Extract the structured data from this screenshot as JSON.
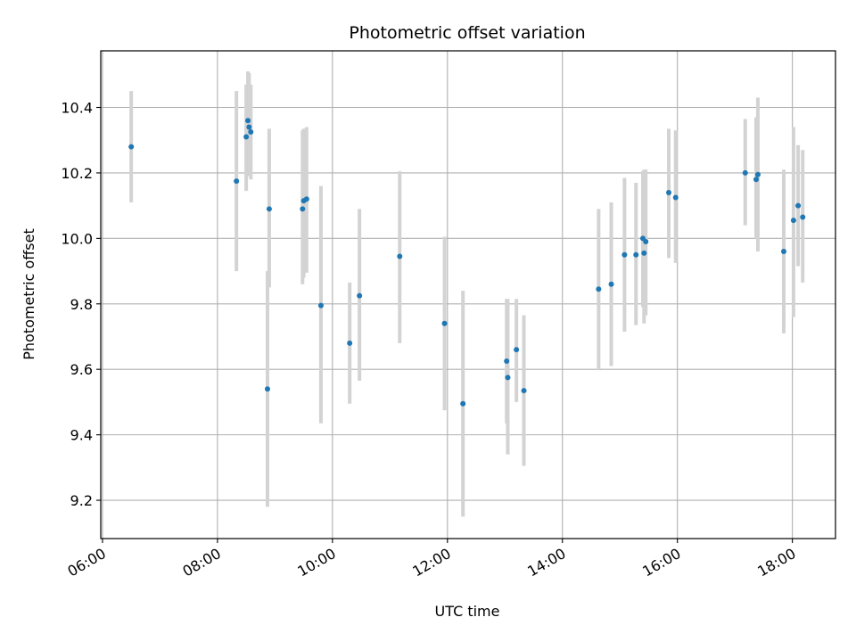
{
  "chart_data": {
    "type": "scatter",
    "title": "Photometric offset variation",
    "xlabel": "UTC time",
    "ylabel": "Photometric offset",
    "x_unit": "hours (UTC)",
    "xlim": [
      5.97,
      18.75
    ],
    "ylim": [
      9.083,
      10.573
    ],
    "x_ticks": [
      {
        "value": 6,
        "label": "06:00"
      },
      {
        "value": 8,
        "label": "08:00"
      },
      {
        "value": 10,
        "label": "10:00"
      },
      {
        "value": 12,
        "label": "12:00"
      },
      {
        "value": 14,
        "label": "14:00"
      },
      {
        "value": 16,
        "label": "16:00"
      },
      {
        "value": 18,
        "label": "18:00"
      }
    ],
    "y_ticks": [
      {
        "value": 9.2,
        "label": "9.2"
      },
      {
        "value": 9.4,
        "label": "9.4"
      },
      {
        "value": 9.6,
        "label": "9.6"
      },
      {
        "value": 9.8,
        "label": "9.8"
      },
      {
        "value": 10.0,
        "label": "10.0"
      },
      {
        "value": 10.2,
        "label": "10.2"
      },
      {
        "value": 10.4,
        "label": "10.4"
      }
    ],
    "grid": true,
    "colors": {
      "point": "#1f77b4",
      "errorbar": "#d3d3d3",
      "grid": "#b0b0b0",
      "axes": "#000000"
    },
    "points": [
      {
        "x": 6.5,
        "y": 10.28,
        "ylo": 10.11,
        "yhi": 10.45
      },
      {
        "x": 8.33,
        "y": 10.175,
        "ylo": 9.9,
        "yhi": 10.45
      },
      {
        "x": 8.5,
        "y": 10.31,
        "ylo": 10.145,
        "yhi": 10.47
      },
      {
        "x": 8.53,
        "y": 10.36,
        "ylo": 10.21,
        "yhi": 10.51
      },
      {
        "x": 8.55,
        "y": 10.34,
        "ylo": 10.19,
        "yhi": 10.505
      },
      {
        "x": 8.58,
        "y": 10.325,
        "ylo": 10.18,
        "yhi": 10.47
      },
      {
        "x": 8.87,
        "y": 9.54,
        "ylo": 9.18,
        "yhi": 9.9
      },
      {
        "x": 8.9,
        "y": 10.09,
        "ylo": 9.85,
        "yhi": 10.335
      },
      {
        "x": 9.48,
        "y": 10.09,
        "ylo": 9.86,
        "yhi": 10.33
      },
      {
        "x": 9.5,
        "y": 10.115,
        "ylo": 9.88,
        "yhi": 10.335
      },
      {
        "x": 9.55,
        "y": 10.12,
        "ylo": 9.895,
        "yhi": 10.34
      },
      {
        "x": 9.8,
        "y": 9.795,
        "ylo": 9.435,
        "yhi": 10.16
      },
      {
        "x": 10.3,
        "y": 9.68,
        "ylo": 9.495,
        "yhi": 9.865
      },
      {
        "x": 10.47,
        "y": 9.825,
        "ylo": 9.565,
        "yhi": 10.09
      },
      {
        "x": 11.17,
        "y": 9.945,
        "ylo": 9.68,
        "yhi": 10.205
      },
      {
        "x": 11.95,
        "y": 9.74,
        "ylo": 9.475,
        "yhi": 10.005
      },
      {
        "x": 12.27,
        "y": 9.495,
        "ylo": 9.15,
        "yhi": 9.84
      },
      {
        "x": 13.03,
        "y": 9.625,
        "ylo": 9.435,
        "yhi": 9.815
      },
      {
        "x": 13.05,
        "y": 9.575,
        "ylo": 9.34,
        "yhi": 9.815
      },
      {
        "x": 13.2,
        "y": 9.66,
        "ylo": 9.5,
        "yhi": 9.815
      },
      {
        "x": 13.33,
        "y": 9.535,
        "ylo": 9.305,
        "yhi": 9.765
      },
      {
        "x": 14.63,
        "y": 9.845,
        "ylo": 9.6,
        "yhi": 10.09
      },
      {
        "x": 14.85,
        "y": 9.86,
        "ylo": 9.61,
        "yhi": 10.11
      },
      {
        "x": 15.08,
        "y": 9.95,
        "ylo": 9.715,
        "yhi": 10.185
      },
      {
        "x": 15.28,
        "y": 9.95,
        "ylo": 9.735,
        "yhi": 10.17
      },
      {
        "x": 15.4,
        "y": 10.0,
        "ylo": 9.79,
        "yhi": 10.205
      },
      {
        "x": 15.42,
        "y": 9.955,
        "ylo": 9.74,
        "yhi": 10.21
      },
      {
        "x": 15.45,
        "y": 9.99,
        "ylo": 9.765,
        "yhi": 10.21
      },
      {
        "x": 15.85,
        "y": 10.14,
        "ylo": 9.94,
        "yhi": 10.335
      },
      {
        "x": 15.97,
        "y": 10.125,
        "ylo": 9.925,
        "yhi": 10.33
      },
      {
        "x": 17.18,
        "y": 10.2,
        "ylo": 10.04,
        "yhi": 10.365
      },
      {
        "x": 17.37,
        "y": 10.18,
        "ylo": 10.0,
        "yhi": 10.37
      },
      {
        "x": 17.4,
        "y": 10.195,
        "ylo": 9.96,
        "yhi": 10.43
      },
      {
        "x": 17.85,
        "y": 9.96,
        "ylo": 9.71,
        "yhi": 10.21
      },
      {
        "x": 18.02,
        "y": 10.055,
        "ylo": 9.76,
        "yhi": 10.34
      },
      {
        "x": 18.1,
        "y": 10.1,
        "ylo": 9.915,
        "yhi": 10.285
      },
      {
        "x": 18.18,
        "y": 10.065,
        "ylo": 9.865,
        "yhi": 10.27
      }
    ]
  }
}
